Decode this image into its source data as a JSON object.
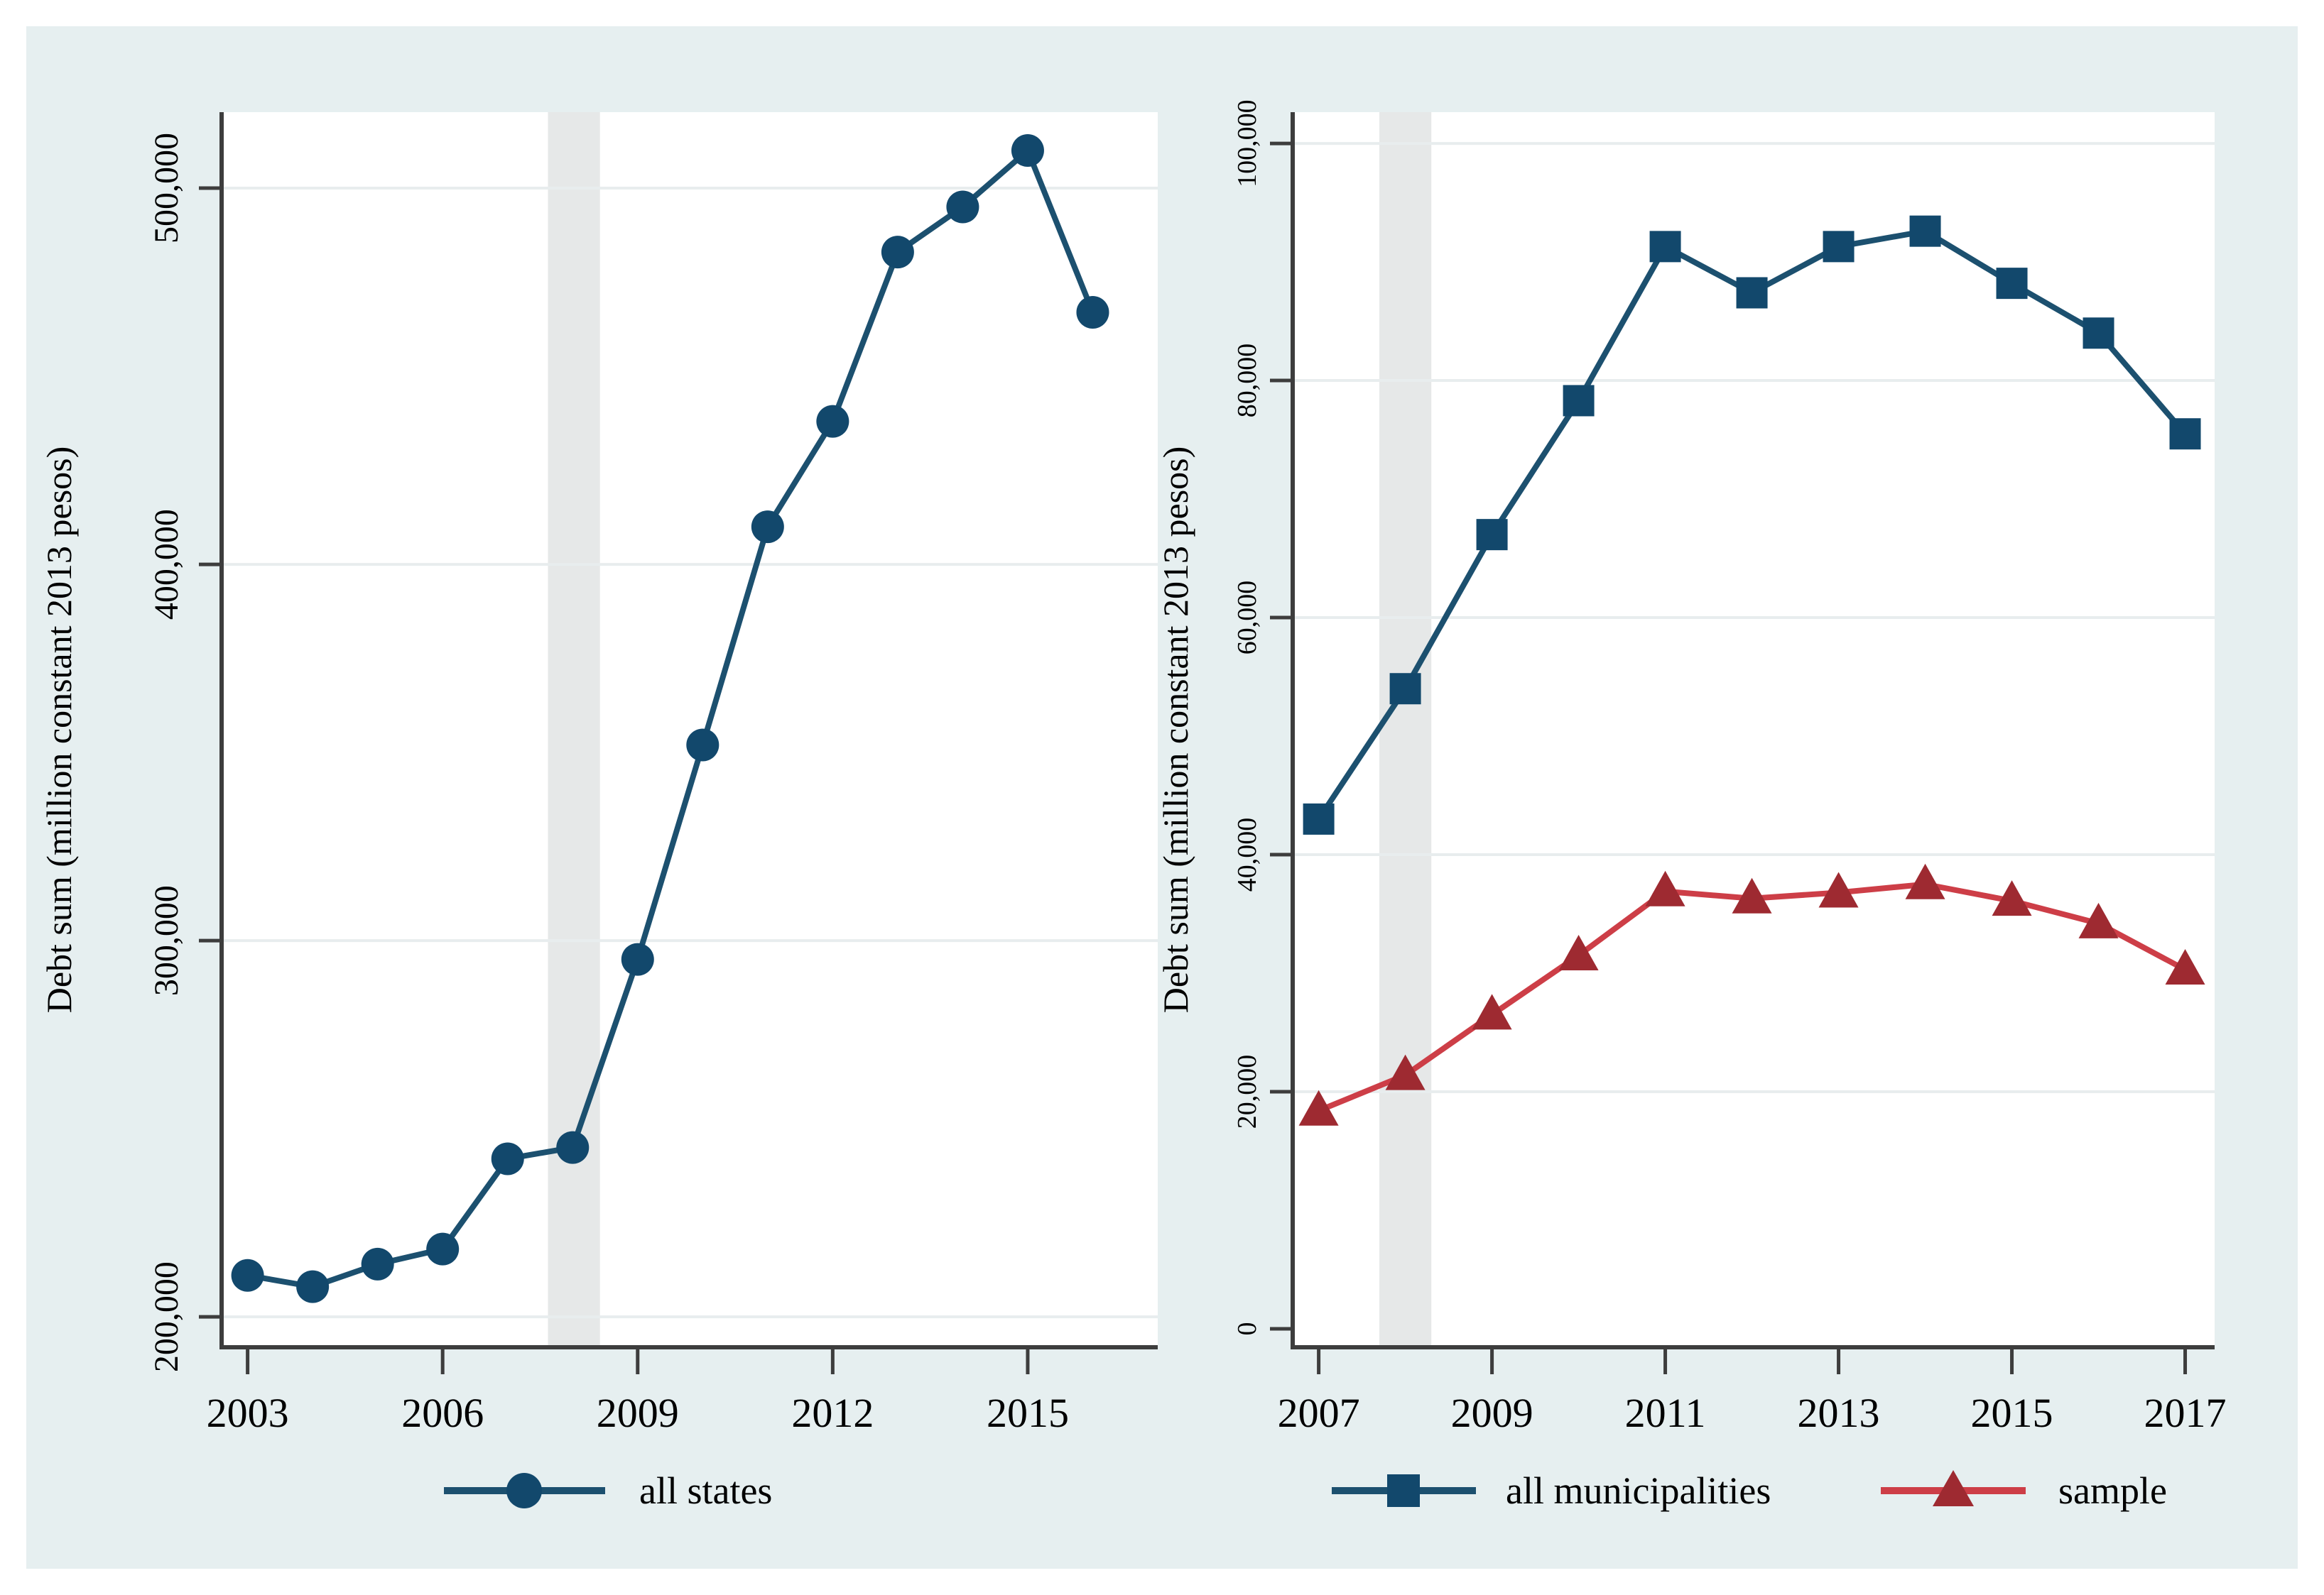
{
  "figure": {
    "outer_background": "#ffffff",
    "inner_background": "#e6eff0",
    "plot_background": "#ffffff",
    "gridline_color": "#e8edee",
    "band_color": "#e6e8e8",
    "axis_color": "#3d3d3d"
  },
  "chart_data": [
    {
      "type": "line",
      "panel": "left",
      "title": "",
      "xlabel": "",
      "ylabel": "Debt sum (million constant 2013 pesos)",
      "grid": true,
      "legend_position": "bottom",
      "x_ticks": [
        2003,
        2006,
        2009,
        2012,
        2015
      ],
      "y_ticks": [
        {
          "value": 200000,
          "label": "200,000"
        },
        {
          "value": 300000,
          "label": "300,000"
        },
        {
          "value": 400000,
          "label": "400,000"
        },
        {
          "value": 500000,
          "label": "500,000"
        }
      ],
      "xlim": [
        2002.6,
        2017.0
      ],
      "ylim": [
        191900,
        520200
      ],
      "shaded_band": {
        "from": 2007.62,
        "to": 2008.42
      },
      "series": [
        {
          "name": "all states",
          "marker": "circle",
          "line_color": "#1c506f",
          "marker_color": "#12486c",
          "x": [
            2003,
            2004,
            2005,
            2006,
            2007,
            2008,
            2009,
            2010,
            2011,
            2012,
            2013,
            2014,
            2015,
            2016
          ],
          "values": [
            211000,
            208000,
            214000,
            218000,
            242000,
            245000,
            295000,
            352000,
            410000,
            438000,
            483000,
            495000,
            510000,
            467000
          ]
        }
      ]
    },
    {
      "type": "line",
      "panel": "right",
      "title": "",
      "xlabel": "",
      "ylabel": "Debt sum (million constant 2013 pesos)",
      "grid": true,
      "legend_position": "bottom",
      "x_ticks": [
        2007,
        2009,
        2011,
        2013,
        2015,
        2017
      ],
      "y_ticks": [
        {
          "value": 0,
          "label": "0"
        },
        {
          "value": 20000,
          "label": "20,000"
        },
        {
          "value": 40000,
          "label": "40,000"
        },
        {
          "value": 60000,
          "label": "60,000"
        },
        {
          "value": 80000,
          "label": "80,000"
        },
        {
          "value": 100000,
          "label": "100,000"
        }
      ],
      "xlim": [
        2006.7,
        2017.34
      ],
      "ylim": [
        -1560,
        102640
      ],
      "shaded_band": {
        "from": 2007.7,
        "to": 2008.3
      },
      "series": [
        {
          "name": "all municipalities",
          "marker": "square",
          "line_color": "#1c506f",
          "marker_color": "#12486c",
          "x": [
            2007,
            2008,
            2009,
            2010,
            2011,
            2012,
            2013,
            2014,
            2015,
            2016,
            2017
          ],
          "values": [
            43000,
            54000,
            67000,
            78300,
            91300,
            87400,
            91300,
            92600,
            88200,
            84000,
            75500
          ]
        },
        {
          "name": "sample",
          "marker": "triangle",
          "line_color": "#cd3e47",
          "marker_color": "#9e2a31",
          "x": [
            2007,
            2008,
            2009,
            2010,
            2011,
            2012,
            2013,
            2014,
            2015,
            2016,
            2017
          ],
          "values": [
            18400,
            21400,
            26500,
            31500,
            36900,
            36300,
            36800,
            37500,
            36100,
            34200,
            30300
          ]
        }
      ]
    }
  ]
}
